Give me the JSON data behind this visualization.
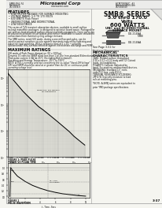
{
  "title_right": "SMB® SERIES\n5.0 thru 170.0\nVolts\n600 WATTS",
  "subtitle_right": "UNI- and BI-DIRECTIONAL\nSURFACE MOUNT",
  "company": "Microsemi Corp",
  "doc_number_left": "SMBJ-494, F4",
  "doc_number_right": "ACM7030A2C, #3",
  "features_title": "FEATURES",
  "features": [
    "• LOW PROFILE PACKAGE FOR SURFACE MOUNTING",
    "• VOLTAGE RANGE: 5.0 TO 170 VOLTS",
    "• 600 WATTS Peak Power",
    "• UNIDIRECTIONAL AND BIDIRECTIONAL",
    "• LOW INDUCTANCE"
  ],
  "max_ratings_title": "MAXIMUM RATINGS",
  "max_ratings": [
    "600 watts of Peak Power dissipation (10 x 1000μs)",
    "Dynamic 10 volts for VBRM rated less than 1 to 10x (non-standard Bidirectional).",
    "Peak pulse current 1.6A (at 25°C (Excluding Bidirectional)).",
    "Operating and Storage Temperature: -55°C to 150°C"
  ],
  "fig1_title": "FIGURE 1: PEAK PULSE\nPOWER VS PULSE TIME",
  "fig2_title": "FIGURE 2\nPULSE WAVEFORM",
  "package_note": "See Page 3-51 for\nPackage Dimensions",
  "package_note2": "*NOTE: A-SMBJ series are equivalent to\nprior YMD package specifications.",
  "mech_title": "MECHANICAL\nCHARACTERISTICS",
  "mech_items": [
    "CASE: Molded surface throughout",
    "0.10 x 0.11 x 0.11 body with (2) Coined",
    "leads, tin leadplating.",
    "POLARITY: Cathode indicated by",
    "band. For marking unidirectional devices.",
    "PACKAGING: Standard 13\" reels:",
    "code P13; box: code B13-1.",
    "TERMINAL RESISTANCE SOLDERING:",
    "2PF/2 W (typically moisture to lead",
    "rails at mounting pins."
  ],
  "page_num": "3-37",
  "bg_color": "#f5f5f0",
  "text_color": "#111111",
  "graph_bg": "#e8e8e0"
}
